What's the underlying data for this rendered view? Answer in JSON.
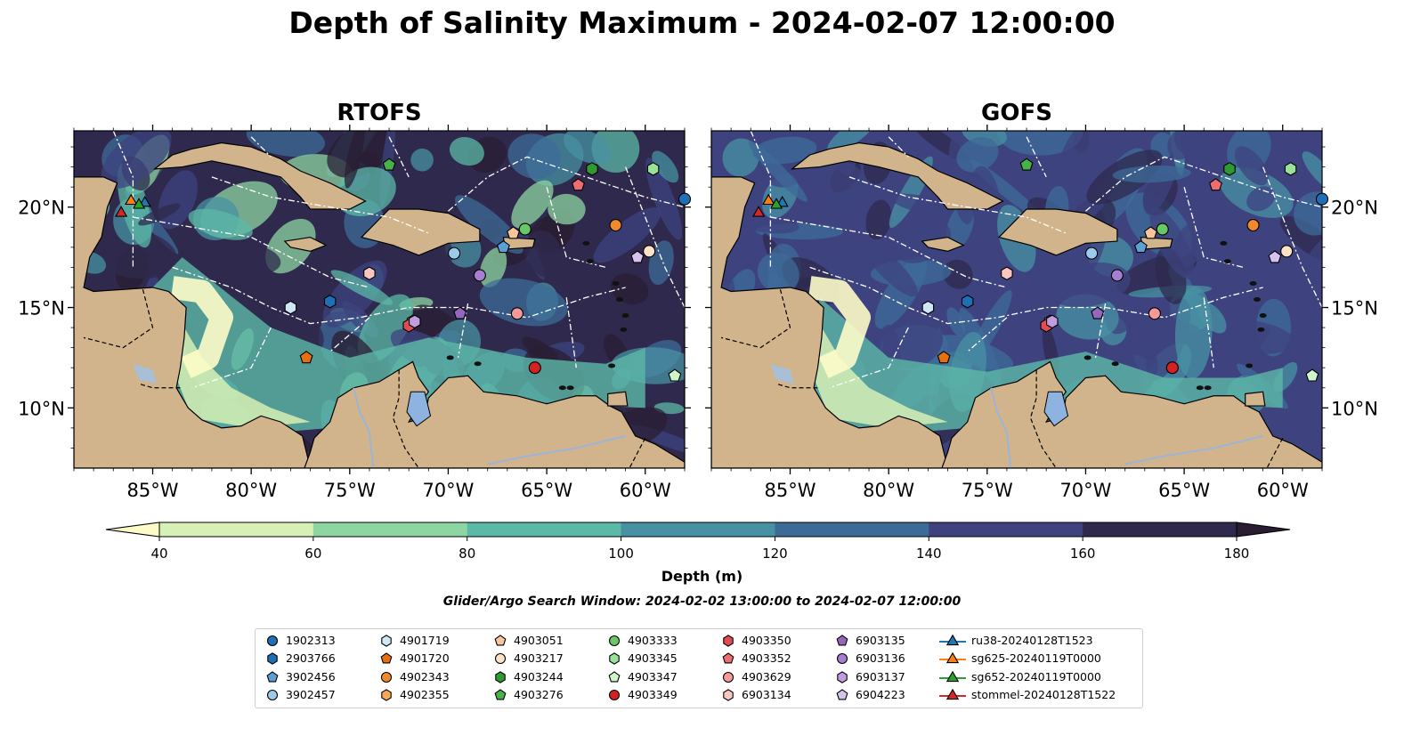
{
  "title": "Depth of Salinity Maximum - 2024-02-07 12:00:00",
  "maps": [
    {
      "title": "RTOFS"
    },
    {
      "title": "GOFS"
    }
  ],
  "axes": {
    "x_ticks": [
      "85°W",
      "80°W",
      "75°W",
      "70°W",
      "65°W",
      "60°W"
    ],
    "y_ticks": [
      "20°N",
      "15°N",
      "10°N"
    ]
  },
  "colorbar": {
    "label": "Depth (m)",
    "ticks": [
      "40",
      "60",
      "80",
      "100",
      "120",
      "140",
      "160",
      "180"
    ],
    "colors": [
      "#fdfcc8",
      "#d6f0b5",
      "#8dd6a3",
      "#5cb8a7",
      "#4891a3",
      "#3d6b98",
      "#3e437f",
      "#2f2a4d",
      "#2a1d33"
    ]
  },
  "search_window": "Glider/Argo Search Window: 2024-02-02 13:00:00 to 2024-02-07 12:00:00",
  "legend": [
    {
      "label": "1902313",
      "marker": "circle",
      "color": "#1f6fb4"
    },
    {
      "label": "2903766",
      "marker": "hexagon",
      "color": "#1f6fb4"
    },
    {
      "label": "3902456",
      "marker": "pentagon",
      "color": "#5b9fd6"
    },
    {
      "label": "3902457",
      "marker": "circle",
      "color": "#9ccaea"
    },
    {
      "label": "4901719",
      "marker": "hexagon",
      "color": "#cfe6f6"
    },
    {
      "label": "4901720",
      "marker": "pentagon",
      "color": "#e6700f"
    },
    {
      "label": "4902343",
      "marker": "circle",
      "color": "#f08a2c"
    },
    {
      "label": "4902355",
      "marker": "hexagon",
      "color": "#f6aa55"
    },
    {
      "label": "4903051",
      "marker": "pentagon",
      "color": "#f8c69a"
    },
    {
      "label": "4903217",
      "marker": "circle",
      "color": "#fde2c8"
    },
    {
      "label": "4903244",
      "marker": "hexagon",
      "color": "#2e9a32"
    },
    {
      "label": "4903276",
      "marker": "pentagon",
      "color": "#46b346"
    },
    {
      "label": "4903333",
      "marker": "circle",
      "color": "#66c966"
    },
    {
      "label": "4903345",
      "marker": "hexagon",
      "color": "#9ae29a"
    },
    {
      "label": "4903347",
      "marker": "pentagon",
      "color": "#cff5c8"
    },
    {
      "label": "4903349",
      "marker": "circle",
      "color": "#d42222"
    },
    {
      "label": "4903350",
      "marker": "hexagon",
      "color": "#e04c52"
    },
    {
      "label": "4903352",
      "marker": "pentagon",
      "color": "#ee6d72"
    },
    {
      "label": "4903629",
      "marker": "circle",
      "color": "#f59a98"
    },
    {
      "label": "6903134",
      "marker": "hexagon",
      "color": "#f9c6c2"
    },
    {
      "label": "6903135",
      "marker": "pentagon",
      "color": "#9467bd"
    },
    {
      "label": "6903136",
      "marker": "circle",
      "color": "#a77fd0"
    },
    {
      "label": "6903137",
      "marker": "hexagon",
      "color": "#bf9de0"
    },
    {
      "label": "6904223",
      "marker": "pentagon",
      "color": "#d7c2ee"
    },
    {
      "label": "ru38-20240128T1523",
      "marker": "triangle-line",
      "color": "#1f77b4"
    },
    {
      "label": "sg625-20240119T0000",
      "marker": "triangle-line",
      "color": "#ff7f0e"
    },
    {
      "label": "sg652-20240119T0000",
      "marker": "triangle-line",
      "color": "#2ca02c"
    },
    {
      "label": "stommel-20240128T1522",
      "marker": "triangle-line",
      "color": "#d62728"
    }
  ],
  "floats": [
    {
      "id": "1902313",
      "lon": -58.0,
      "lat": 20.4
    },
    {
      "id": "2903766",
      "lon": -76.0,
      "lat": 15.3
    },
    {
      "id": "3902456",
      "lon": -67.2,
      "lat": 18.0
    },
    {
      "id": "3902457",
      "lon": -69.7,
      "lat": 17.7
    },
    {
      "id": "4901719",
      "lon": -78.0,
      "lat": 15.0
    },
    {
      "id": "4901720",
      "lon": -77.2,
      "lat": 12.5
    },
    {
      "id": "4902343",
      "lon": -61.5,
      "lat": 19.1
    },
    {
      "id": "4902355",
      "lon": -71.8,
      "lat": 14.3
    },
    {
      "id": "4903051",
      "lon": -66.7,
      "lat": 18.7
    },
    {
      "id": "4903217",
      "lon": -59.8,
      "lat": 17.8
    },
    {
      "id": "4903244",
      "lon": -62.7,
      "lat": 21.9
    },
    {
      "id": "4903276",
      "lon": -73.0,
      "lat": 22.1
    },
    {
      "id": "4903333",
      "lon": -66.1,
      "lat": 18.9
    },
    {
      "id": "4903345",
      "lon": -59.6,
      "lat": 21.9
    },
    {
      "id": "4903347",
      "lon": -58.5,
      "lat": 11.6
    },
    {
      "id": "4903349",
      "lon": -65.6,
      "lat": 12.0
    },
    {
      "id": "4903350",
      "lon": -72.0,
      "lat": 14.1
    },
    {
      "id": "4903352",
      "lon": -63.4,
      "lat": 21.1
    },
    {
      "id": "4903629",
      "lon": -66.5,
      "lat": 14.7
    },
    {
      "id": "6903134",
      "lon": -74.0,
      "lat": 16.7
    },
    {
      "id": "6903135",
      "lon": -69.4,
      "lat": 14.7
    },
    {
      "id": "6903136",
      "lon": -68.4,
      "lat": 16.6
    },
    {
      "id": "6903137",
      "lon": -71.7,
      "lat": 14.3
    },
    {
      "id": "6904223",
      "lon": -60.4,
      "lat": 17.5
    },
    {
      "id": "ru38-20240128T1523",
      "lon": -85.4,
      "lat": 20.2
    },
    {
      "id": "sg625-20240119T0000",
      "lon": -86.1,
      "lat": 20.3
    },
    {
      "id": "sg652-20240119T0000",
      "lon": -85.7,
      "lat": 20.1
    },
    {
      "id": "stommel-20240128T1522",
      "lon": -86.6,
      "lat": 19.7
    }
  ]
}
